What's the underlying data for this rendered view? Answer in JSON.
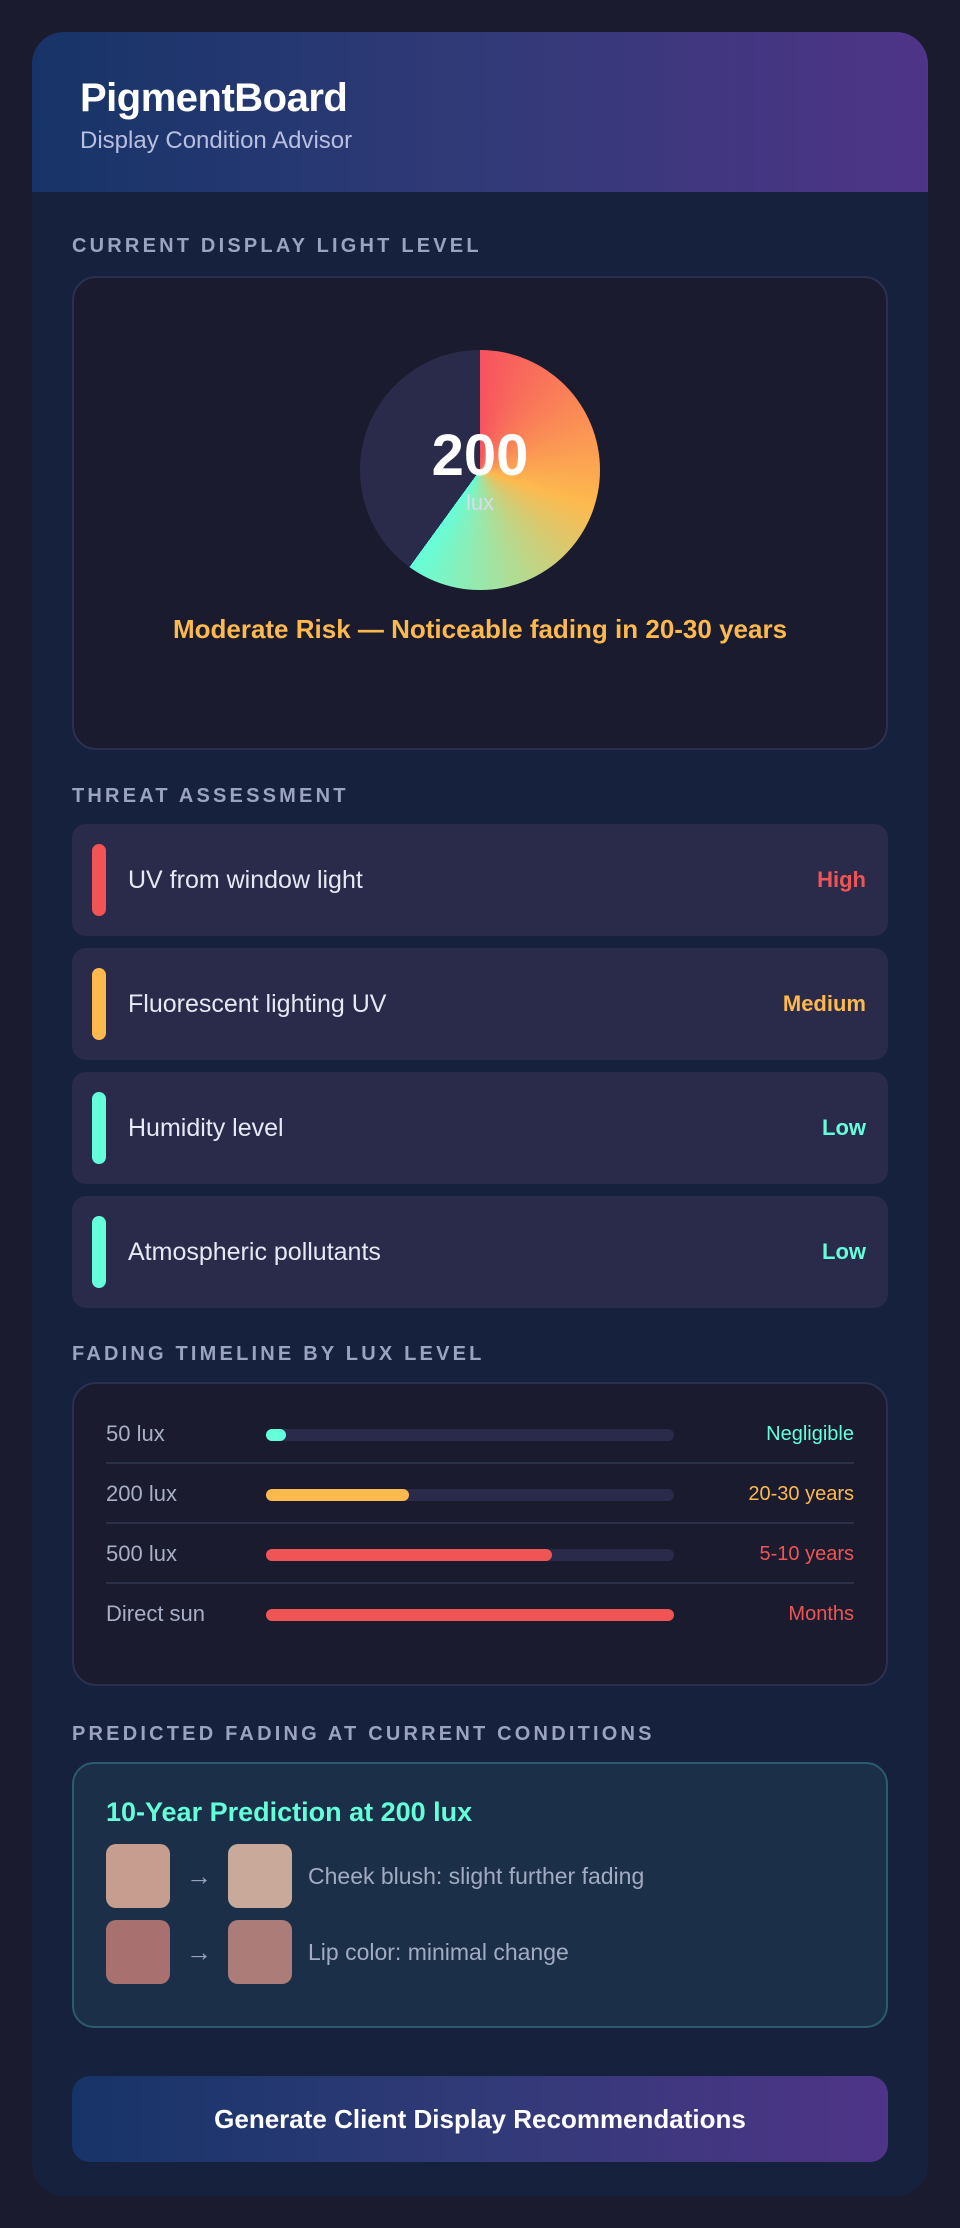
{
  "header": {
    "title": "PigmentBoard",
    "subtitle": "Display Condition Advisor"
  },
  "gauge": {
    "section_label": "CURRENT DISPLAY LIGHT LEVEL",
    "value": "200",
    "unit": "lux",
    "risk_text": "Moderate Risk — Noticeable fading in 20-30 years",
    "fill_fraction": 0.6,
    "colors": {
      "track": "#2a2b4a",
      "start": "#f7525f",
      "mid": "#fdb94e",
      "end": "#64ffda"
    }
  },
  "threats": {
    "section_label": "THREAT ASSESSMENT",
    "items": [
      {
        "name": "UV from window light",
        "level": "High",
        "color": "#f05454"
      },
      {
        "name": "Fluorescent lighting UV",
        "level": "Medium",
        "color": "#fdb94e"
      },
      {
        "name": "Humidity level",
        "level": "Low",
        "color": "#64ffda"
      },
      {
        "name": "Atmospheric pollutants",
        "level": "Low",
        "color": "#64ffda"
      }
    ]
  },
  "timeline": {
    "section_label": "FADING TIMELINE BY LUX LEVEL",
    "rows": [
      {
        "label": "50 lux",
        "result": "Negligible",
        "fill_fraction": 0.05,
        "color": "#64ffda"
      },
      {
        "label": "200 lux",
        "result": "20-30 years",
        "fill_fraction": 0.35,
        "color": "#fdb94e"
      },
      {
        "label": "500 lux",
        "result": "5-10 years",
        "fill_fraction": 0.7,
        "color": "#f05454"
      },
      {
        "label": "Direct sun",
        "result": "Months",
        "fill_fraction": 1.0,
        "color": "#f05454"
      }
    ]
  },
  "prediction": {
    "section_label": "PREDICTED FADING AT CURRENT CONDITIONS",
    "title": "10-Year Prediction at 200 lux",
    "arrow": "→",
    "rows": [
      {
        "before_color": "#c69d8e",
        "after_color": "#c8a99a",
        "text": "Cheek blush: slight further fading"
      },
      {
        "before_color": "#a8706f",
        "after_color": "#ac7c78",
        "text": "Lip color: minimal change"
      }
    ]
  },
  "cta": {
    "label": "Generate Client Display Recommendations"
  }
}
